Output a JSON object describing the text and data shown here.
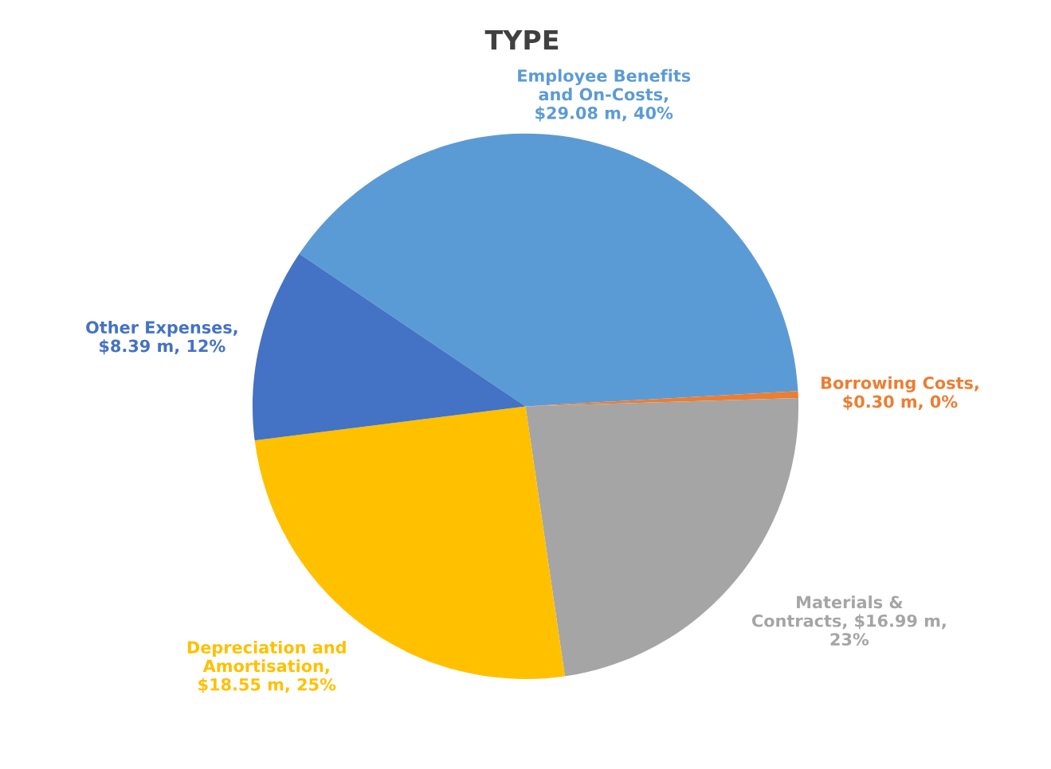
{
  "chart_data": {
    "type": "pie",
    "title": "TYPE",
    "categories": [
      "Employee Benefits\nand On-Costs",
      "Borrowing Costs",
      "Materials &\nContracts",
      "Depreciation and\nAmortisation",
      "Other Expenses"
    ],
    "values": [
      29.08,
      0.3,
      16.99,
      18.55,
      8.39
    ],
    "value_labels": [
      ",\n$29.08 m, 40%",
      ",\n$0.30 m, 0%",
      ", $16.99 m,\n23%",
      ",\n$18.55 m, 25%",
      ",\n$8.39 m, 12%"
    ],
    "colors": [
      "#5b9bd5",
      "#ed7d31",
      "#a5a5a5",
      "#ffc000",
      "#4472c4"
    ],
    "legend": false
  }
}
